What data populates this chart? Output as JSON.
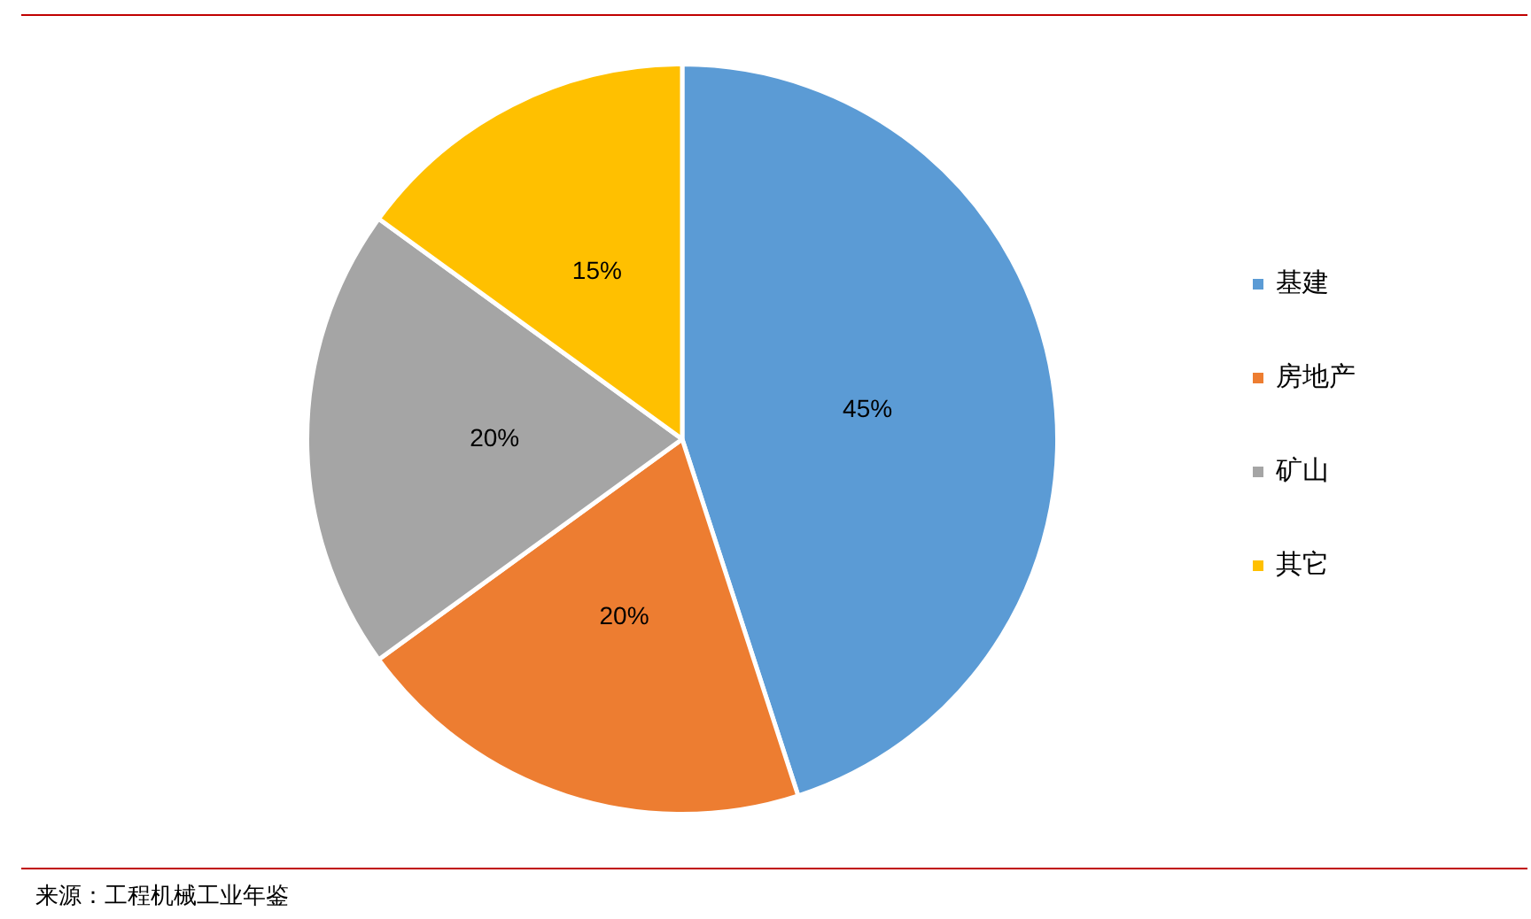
{
  "chart_data": {
    "type": "pie",
    "categories": [
      "基建",
      "房地产",
      "矿山",
      "其它"
    ],
    "values": [
      45,
      20,
      20,
      15
    ],
    "colors": [
      "#5b9bd5",
      "#ed7d31",
      "#a5a5a5",
      "#ffc000"
    ],
    "value_labels": [
      "45%",
      "20%",
      "20%",
      "15%"
    ],
    "legend": "right",
    "annotations": [
      "来源：工程机械工业年鉴"
    ]
  }
}
